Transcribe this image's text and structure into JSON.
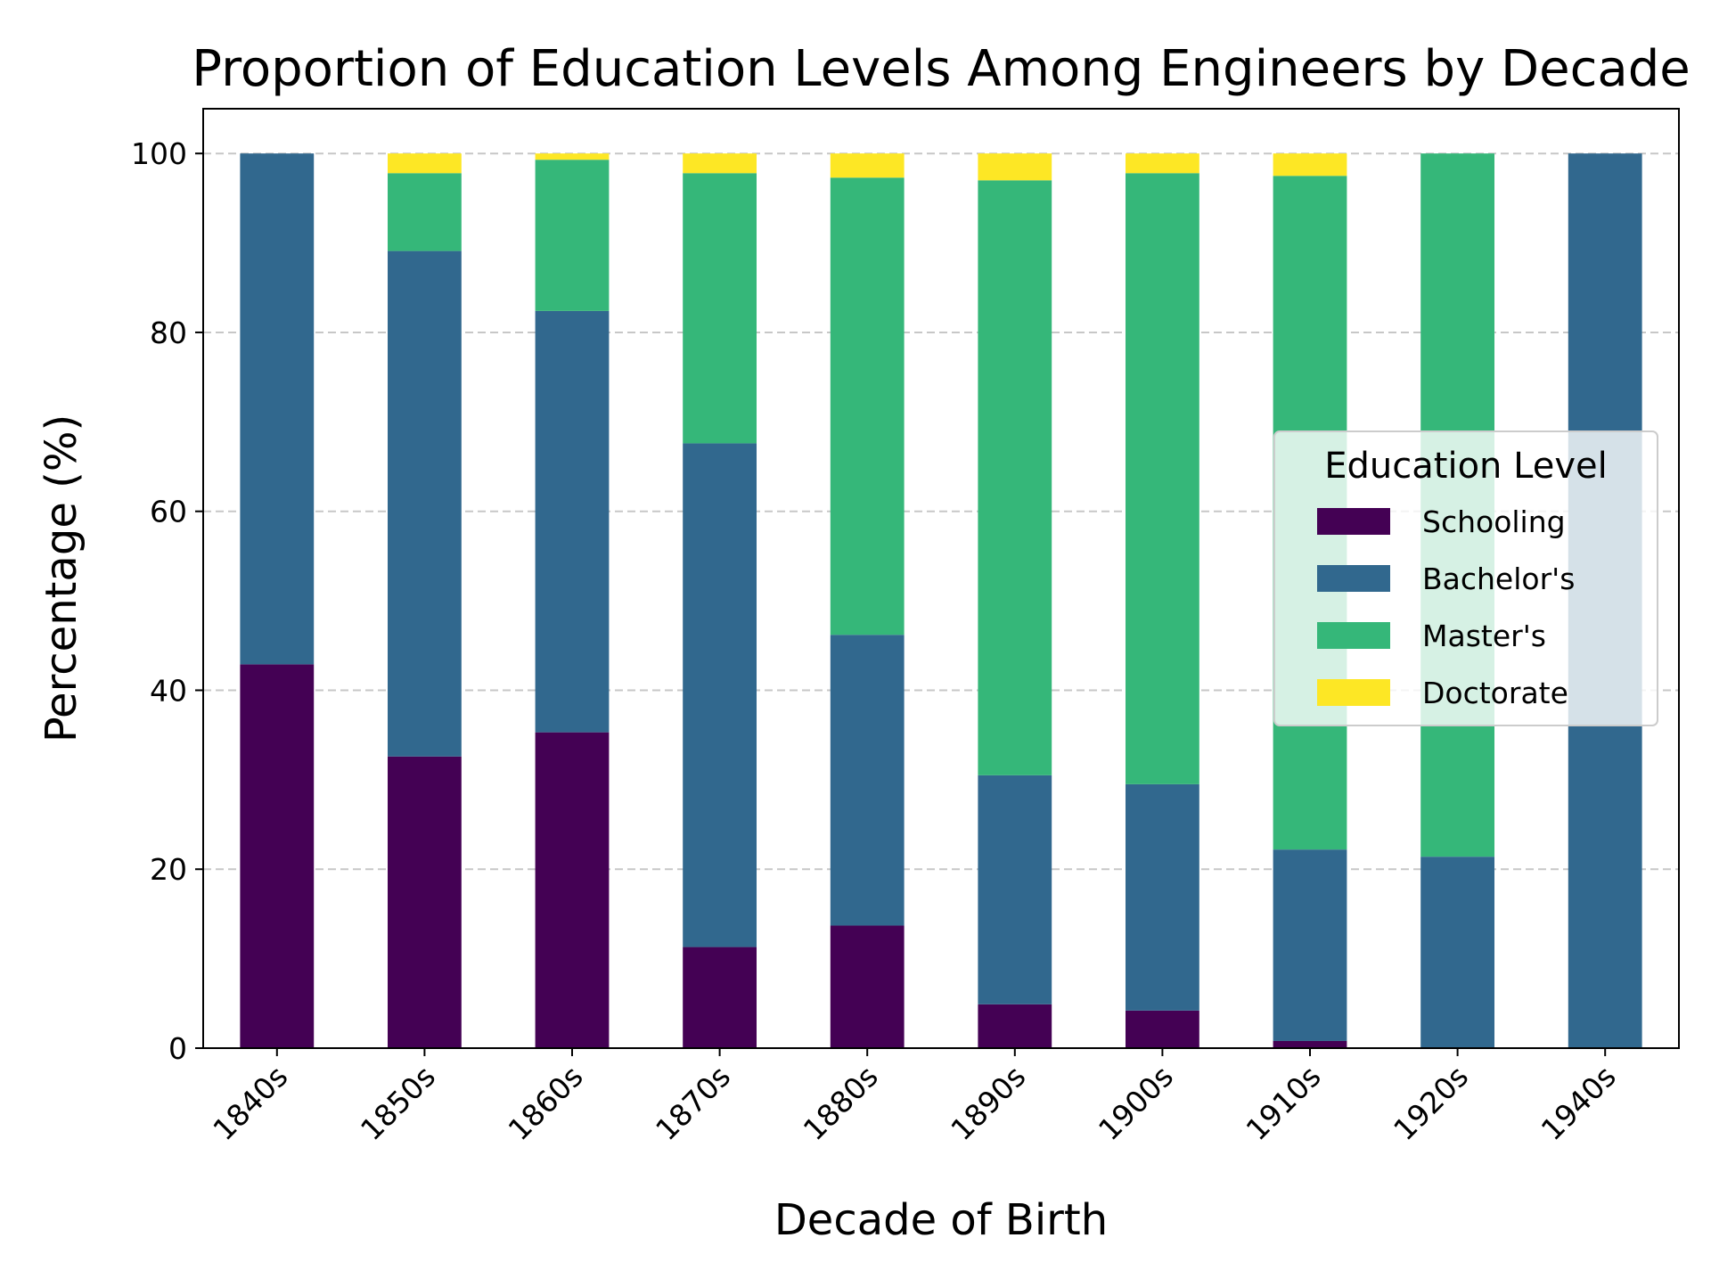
{
  "chart_data": {
    "type": "bar",
    "stacked": true,
    "title": "Proportion of Education Levels Among Engineers by Decade",
    "xlabel": "Decade of Birth",
    "ylabel": "Percentage (%)",
    "categories": [
      "1840s",
      "1850s",
      "1860s",
      "1870s",
      "1880s",
      "1890s",
      "1900s",
      "1910s",
      "1920s",
      "1940s"
    ],
    "ylim": [
      0,
      105
    ],
    "yticks": [
      0,
      20,
      40,
      60,
      80,
      100
    ],
    "grid": "y-dashed",
    "legend": {
      "title": "Education Level",
      "placement": "center-right"
    },
    "series": [
      {
        "name": "Schooling",
        "color": "#440154",
        "values": [
          42.9,
          32.6,
          35.3,
          11.3,
          13.7,
          4.9,
          4.2,
          0.8,
          0,
          0
        ]
      },
      {
        "name": "Bachelor's",
        "color": "#31688e",
        "values": [
          57.1,
          56.5,
          47.1,
          56.3,
          32.5,
          25.6,
          25.3,
          21.4,
          21.4,
          100
        ]
      },
      {
        "name": "Master's",
        "color": "#35b779",
        "values": [
          0,
          8.7,
          16.9,
          30.2,
          51.1,
          66.5,
          68.3,
          75.3,
          78.6,
          0
        ]
      },
      {
        "name": "Doctorate",
        "color": "#fde725",
        "values": [
          0,
          2.2,
          0.7,
          2.2,
          2.7,
          3.0,
          2.2,
          2.5,
          0,
          0
        ]
      }
    ]
  }
}
